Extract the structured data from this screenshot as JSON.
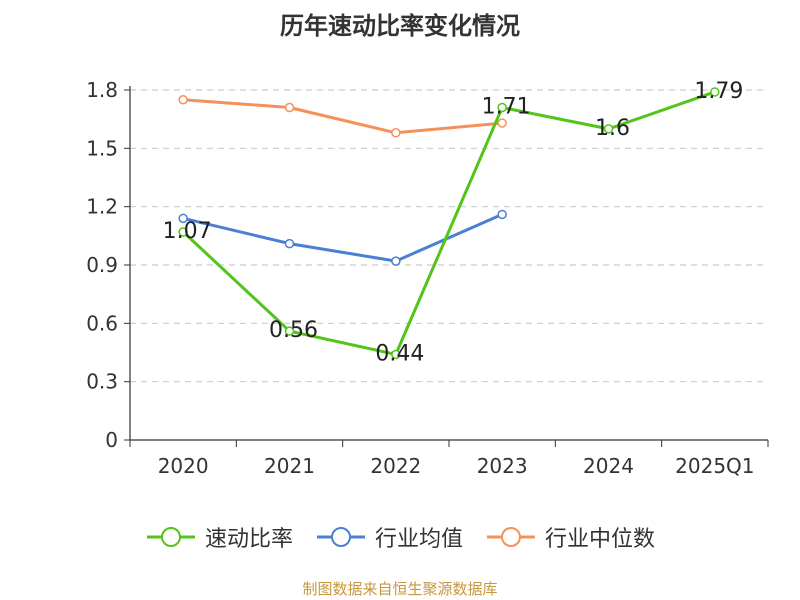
{
  "chart_data": {
    "type": "line",
    "title": "历年速动比率变化情况",
    "categories": [
      "2020",
      "2021",
      "2022",
      "2023",
      "2024",
      "2025Q1"
    ],
    "ylim": [
      0,
      1.8
    ],
    "yticks": [
      "0",
      "0.3",
      "0.6",
      "0.9",
      "1.2",
      "1.5",
      "1.8"
    ],
    "grid": true,
    "legend_position": "bottom",
    "series": [
      {
        "name": "速动比率",
        "color": "#52c41a",
        "values": [
          1.07,
          0.56,
          0.44,
          1.71,
          1.6,
          1.79
        ],
        "labels": [
          "1.07",
          "0.56",
          "0.44",
          "1.71",
          "1.6",
          "1.79"
        ],
        "show_labels": true
      },
      {
        "name": "行业均值",
        "color": "#4a7fd4",
        "values": [
          1.14,
          1.01,
          0.92,
          1.16,
          null,
          null
        ],
        "show_labels": false
      },
      {
        "name": "行业中位数",
        "color": "#f5905a",
        "values": [
          1.75,
          1.71,
          1.58,
          1.63,
          null,
          null
        ],
        "show_labels": false
      }
    ]
  },
  "source": "制图数据来自恒生聚源数据库"
}
